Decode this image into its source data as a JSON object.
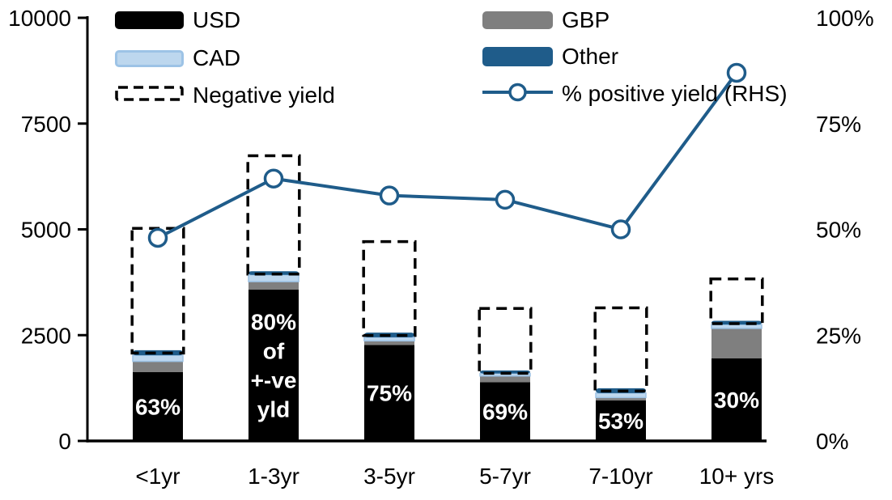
{
  "legend": {
    "items": [
      {
        "label": "USD",
        "swatch": "solid",
        "color": "#000000"
      },
      {
        "label": "GBP",
        "swatch": "solid",
        "color": "#7F7F7F"
      },
      {
        "label": "CAD",
        "swatch": "solid",
        "color": "#BDD7EE",
        "border_color": "#9DC3E6"
      },
      {
        "label": "Other",
        "swatch": "solid",
        "color": "#1F5C8A"
      },
      {
        "label": "Negative yield",
        "swatch": "dashed-outline",
        "color": "#000000"
      },
      {
        "label": "% positive yield (RHS)",
        "swatch": "line-marker",
        "color": "#1F5C8A"
      }
    ]
  },
  "chart_data": {
    "type": "bar",
    "subtype": "stacked-bars-with-dashed-outline-and-line-overlay",
    "categories": [
      "<1yr",
      "1-3yr",
      "3-5yr",
      "5-7yr",
      "7-10yr",
      "10+ yrs"
    ],
    "left_axis": {
      "ticks": [
        0,
        2500,
        5000,
        7500,
        10000
      ],
      "min": 0,
      "max": 10000
    },
    "right_axis": {
      "tick_labels": [
        "0%",
        "25%",
        "50%",
        "75%",
        "100%"
      ],
      "tick_values": [
        0,
        25,
        50,
        75,
        100
      ],
      "min": 0,
      "max": 100
    },
    "grid": false,
    "legend_position": "top",
    "series": [
      {
        "name": "USD",
        "type": "bar",
        "color": "#000000",
        "values": [
          1630,
          3575,
          2270,
          1390,
          960,
          1950
        ]
      },
      {
        "name": "GBP",
        "type": "bar",
        "color": "#7F7F7F",
        "values": [
          250,
          190,
          95,
          145,
          65,
          710
        ]
      },
      {
        "name": "CAD",
        "type": "bar",
        "color": "#BDD7EE",
        "border_color": "#9DC3E6",
        "values": [
          145,
          160,
          85,
          60,
          105,
          90
        ]
      },
      {
        "name": "Other",
        "type": "bar",
        "color": "#1F5C8A",
        "values": [
          120,
          85,
          110,
          70,
          115,
          90
        ]
      },
      {
        "name": "Negative yield",
        "type": "bar-outline-dashed",
        "color": "#000000",
        "values": [
          2880,
          2730,
          2150,
          1465,
          1900,
          990
        ],
        "stack_top_totals": [
          5025,
          6740,
          4710,
          3130,
          3145,
          3830
        ]
      },
      {
        "name": "% positive yield (RHS)",
        "type": "line",
        "axis": "right",
        "color": "#1F5C8A",
        "marker": "open-circle",
        "values": [
          48,
          62,
          58,
          57,
          50,
          87
        ]
      }
    ],
    "bar_labels": [
      {
        "category": "<1yr",
        "lines": [
          "63%"
        ]
      },
      {
        "category": "1-3yr",
        "lines": [
          "80%",
          "of",
          "+-ve",
          "yld"
        ]
      },
      {
        "category": "3-5yr",
        "lines": [
          "75%"
        ]
      },
      {
        "category": "5-7yr",
        "lines": [
          "69%"
        ]
      },
      {
        "category": "7-10yr",
        "lines": [
          "53%"
        ]
      },
      {
        "category": "10+ yrs",
        "lines": [
          "30%"
        ]
      }
    ]
  }
}
